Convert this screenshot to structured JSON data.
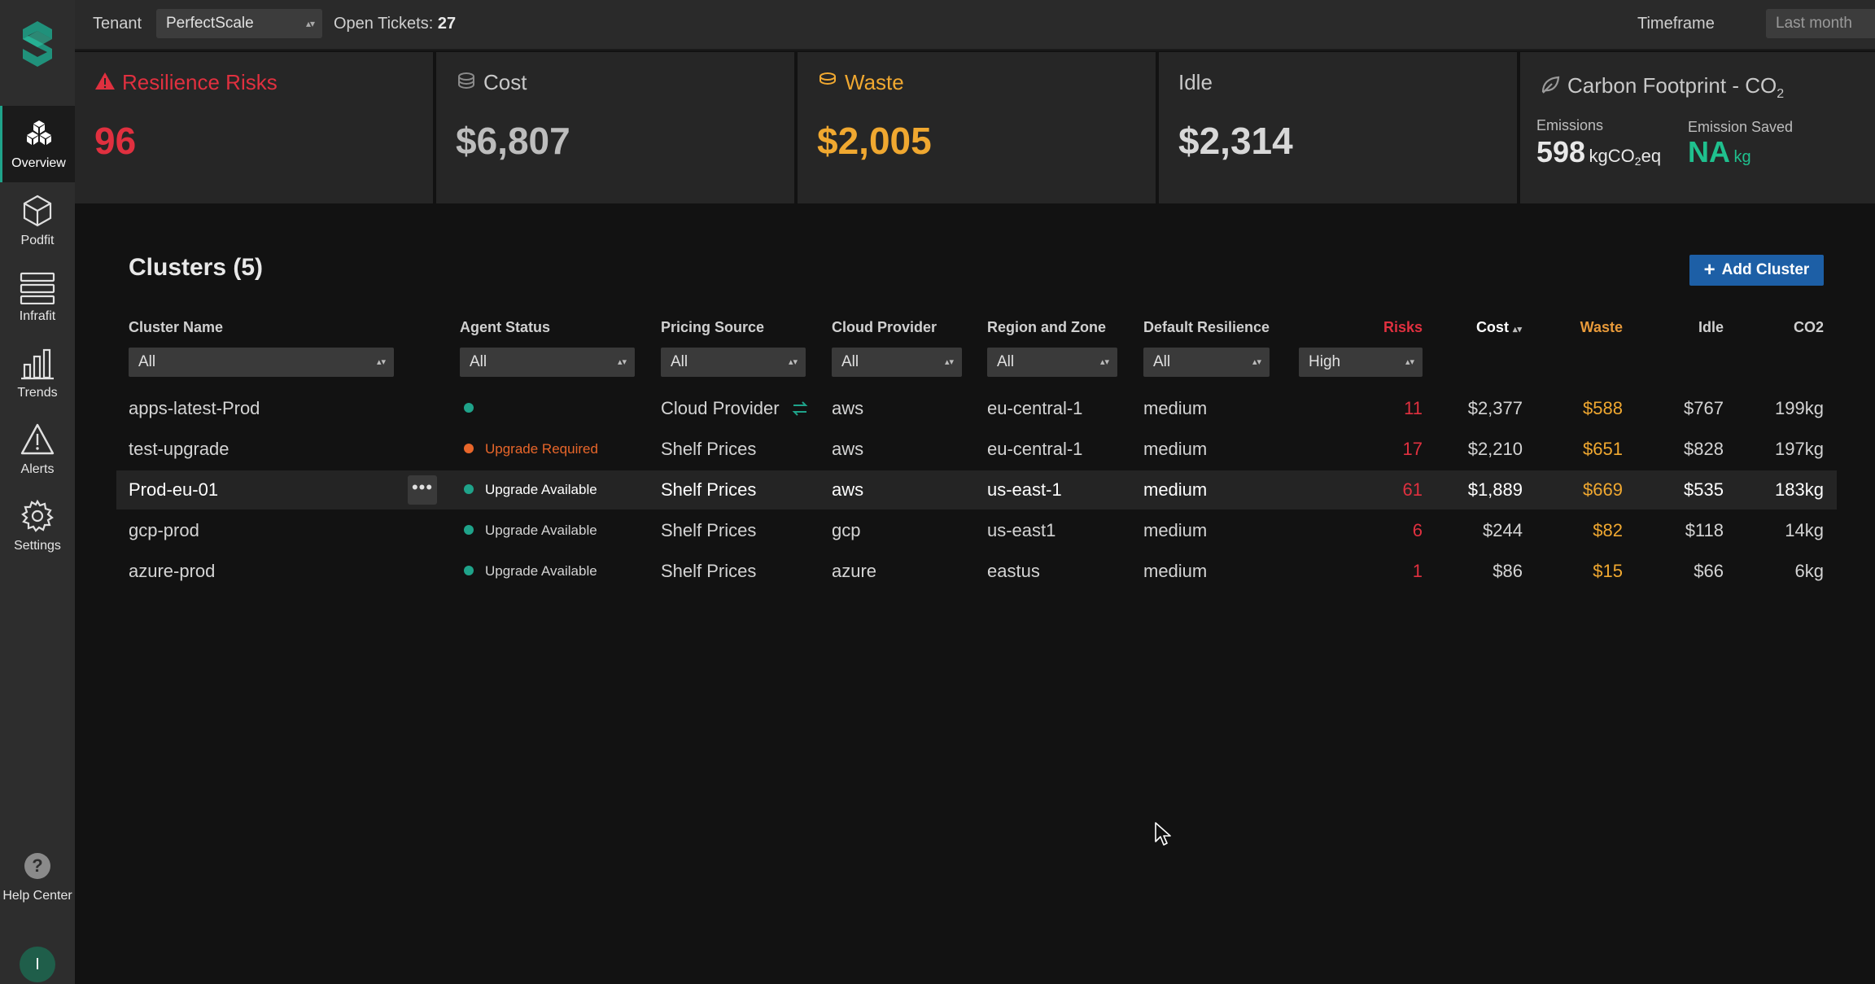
{
  "nav": {
    "items": [
      {
        "label": "Overview",
        "icon": "overview-cubes-icon"
      },
      {
        "label": "Podfit",
        "icon": "cube-icon"
      },
      {
        "label": "Infrafit",
        "icon": "server-icon"
      },
      {
        "label": "Trends",
        "icon": "bar-chart-icon"
      },
      {
        "label": "Alerts",
        "icon": "warning-icon"
      },
      {
        "label": "Settings",
        "icon": "gear-icon"
      }
    ],
    "help_label": "Help Center",
    "avatar_initial": "I"
  },
  "topbar": {
    "tenant_label": "Tenant",
    "tenant_value": "PerfectScale",
    "tickets_label": "Open Tickets:",
    "tickets_count": "27",
    "timeframe_label": "Timeframe",
    "timeframe_value": "Last month"
  },
  "cards": {
    "resilience": {
      "title": "Resilience Risks",
      "value": "96"
    },
    "cost": {
      "title": "Cost",
      "value": "$6,807"
    },
    "waste": {
      "title": "Waste",
      "value": "$2,005"
    },
    "idle": {
      "title": "Idle",
      "value": "$2,314"
    },
    "carbon": {
      "title": "Carbon Footprint - CO",
      "title_sub": "2",
      "emissions_label": "Emissions",
      "emissions_value": "598",
      "emissions_unit_a": "kgCO",
      "emissions_unit_sub": "2",
      "emissions_unit_b": "eq",
      "saved_label": "Emission Saved",
      "saved_value": "NA",
      "saved_unit": "kg"
    }
  },
  "clusters": {
    "title": "Clusters (5)",
    "add_button": "Add Cluster",
    "columns": {
      "name": "Cluster Name",
      "agent": "Agent Status",
      "pricing": "Pricing Source",
      "provider": "Cloud Provider",
      "region": "Region and Zone",
      "resilience": "Default Resilience",
      "risks": "Risks",
      "cost": "Cost",
      "waste": "Waste",
      "idle": "Idle",
      "co2": "CO2"
    },
    "filters": {
      "name": "All",
      "agent": "All",
      "pricing": "All",
      "provider": "All",
      "region": "All",
      "resilience": "All",
      "risks": "High"
    },
    "rows": [
      {
        "name": "apps-latest-Prod",
        "status": "",
        "pricing": "Cloud Provider",
        "provider": "aws",
        "region": "eu-central-1",
        "resilience": "medium",
        "risks": "11",
        "cost": "$2,377",
        "waste": "$588",
        "idle": "$767",
        "co2": "199kg"
      },
      {
        "name": "test-upgrade",
        "status": "Upgrade Required",
        "pricing": "Shelf Prices",
        "provider": "aws",
        "region": "eu-central-1",
        "resilience": "medium",
        "risks": "17",
        "cost": "$2,210",
        "waste": "$651",
        "idle": "$828",
        "co2": "197kg"
      },
      {
        "name": "Prod-eu-01",
        "status": "Upgrade Available",
        "pricing": "Shelf Prices",
        "provider": "aws",
        "region": "us-east-1",
        "resilience": "medium",
        "risks": "61",
        "cost": "$1,889",
        "waste": "$669",
        "idle": "$535",
        "co2": "183kg"
      },
      {
        "name": "gcp-prod",
        "status": "Upgrade Available",
        "pricing": "Shelf Prices",
        "provider": "gcp",
        "region": "us-east1",
        "resilience": "medium",
        "risks": "6",
        "cost": "$244",
        "waste": "$82",
        "idle": "$118",
        "co2": "14kg"
      },
      {
        "name": "azure-prod",
        "status": "Upgrade Available",
        "pricing": "Shelf Prices",
        "provider": "azure",
        "region": "eastus",
        "resilience": "medium",
        "risks": "1",
        "cost": "$86",
        "waste": "$15",
        "idle": "$66",
        "co2": "6kg"
      }
    ],
    "more_label": "•••"
  },
  "colors": {
    "accent_green": "#1fa38a",
    "risk_red": "#e0303f",
    "waste_yellow": "#f0a830",
    "button_blue": "#1d5fa6"
  }
}
